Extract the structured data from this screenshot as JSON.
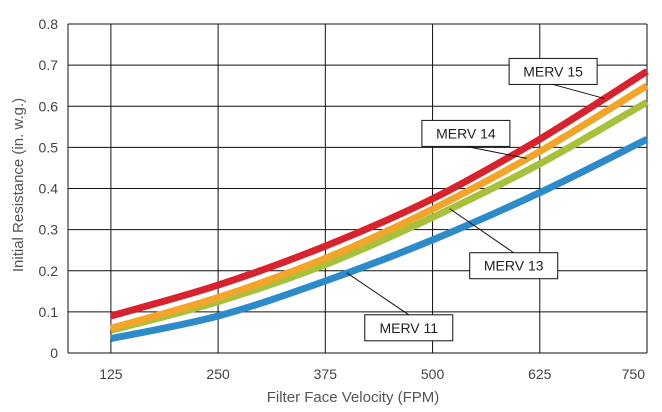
{
  "chart_data": {
    "type": "line",
    "xlabel": "Filter Face Velocity (FPM)",
    "ylabel": "Initial Resistance (in. w.g.)",
    "xlim": [
      75,
      750
    ],
    "ylim": [
      0,
      0.8
    ],
    "x_ticks": [
      125,
      250,
      375,
      500,
      625,
      750
    ],
    "y_ticks": [
      0,
      0.1,
      0.2,
      0.3,
      0.4,
      0.5,
      0.6,
      0.7,
      0.8
    ],
    "x_tick_labels": [
      "125",
      "250",
      "375",
      "500",
      "625",
      "750"
    ],
    "y_tick_labels": [
      "0",
      "0.1",
      "0.2",
      "0.3",
      "0.4",
      "0.5",
      "0.6",
      "0.7",
      "0.8"
    ],
    "grid": true,
    "x": [
      125,
      250,
      375,
      500,
      625,
      750
    ],
    "series": [
      {
        "name": "MERV 11",
        "color": "#2e8bc9",
        "values": [
          0.035,
          0.09,
          0.175,
          0.275,
          0.39,
          0.52
        ]
      },
      {
        "name": "MERV 13",
        "color": "#a8c13c",
        "values": [
          0.055,
          0.125,
          0.215,
          0.33,
          0.46,
          0.61
        ]
      },
      {
        "name": "MERV 14",
        "color": "#f2a52b",
        "values": [
          0.06,
          0.135,
          0.23,
          0.35,
          0.49,
          0.65
        ]
      },
      {
        "name": "MERV 15",
        "color": "#d6232e",
        "values": [
          0.09,
          0.165,
          0.26,
          0.375,
          0.52,
          0.685
        ]
      }
    ],
    "annotations": [
      {
        "text": "MERV 15",
        "series": "MERV 15",
        "x": 700
      },
      {
        "text": "MERV 14",
        "series": "MERV 14",
        "x": 610
      },
      {
        "text": "MERV 13",
        "series": "MERV 13",
        "x": 520
      },
      {
        "text": "MERV 11",
        "series": "MERV 11",
        "x": 400
      }
    ]
  }
}
